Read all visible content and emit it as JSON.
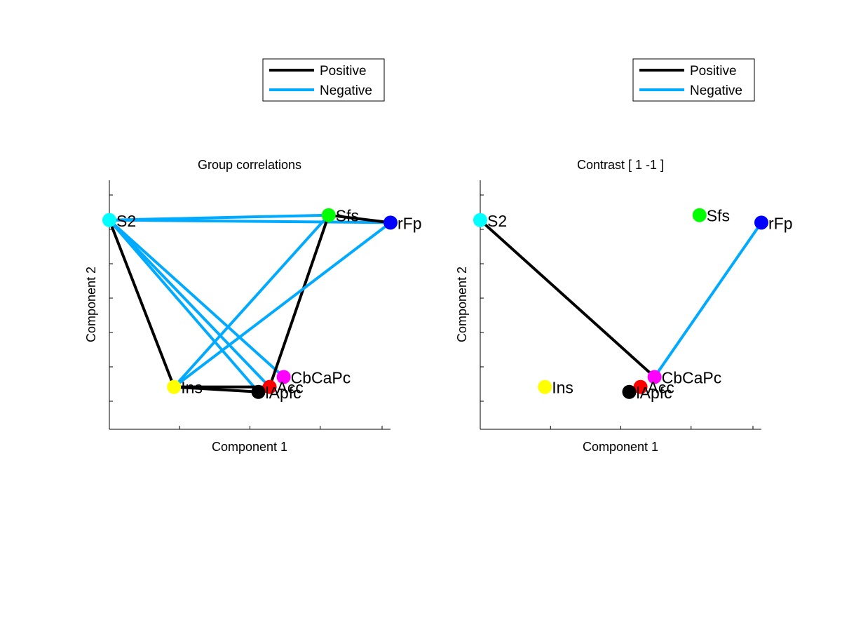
{
  "chart_data": [
    {
      "type": "scatter",
      "title": "Group correlations",
      "xlabel": "Component 1",
      "ylabel": "Component 2",
      "legend": {
        "placement": "above-right",
        "entries": [
          {
            "label": "Positive",
            "color": "#000000"
          },
          {
            "label": "Negative",
            "color": "#00aaff"
          }
        ]
      },
      "nodes": [
        {
          "name": "S2",
          "x": 0.0,
          "y": 0.84,
          "color": "#00ffff"
        },
        {
          "name": "Sfs",
          "x": 0.78,
          "y": 0.86,
          "color": "#00ff00"
        },
        {
          "name": "rFp",
          "x": 1.0,
          "y": 0.83,
          "color": "#0000ff"
        },
        {
          "name": "Ins",
          "x": 0.23,
          "y": 0.17,
          "color": "#ffff00"
        },
        {
          "name": "CbCaPc",
          "x": 0.62,
          "y": 0.21,
          "color": "#ff00ff"
        },
        {
          "name": "Acc",
          "x": 0.57,
          "y": 0.17,
          "color": "#ff0000"
        },
        {
          "name": "lApfc",
          "x": 0.53,
          "y": 0.15,
          "color": "#000000"
        }
      ],
      "edges": [
        {
          "from": "S2",
          "to": "Sfs",
          "sign": "Negative"
        },
        {
          "from": "S2",
          "to": "rFp",
          "sign": "Negative"
        },
        {
          "from": "S2",
          "to": "Ins",
          "sign": "Positive"
        },
        {
          "from": "S2",
          "to": "Acc",
          "sign": "Negative"
        },
        {
          "from": "S2",
          "to": "lApfc",
          "sign": "Negative"
        },
        {
          "from": "S2",
          "to": "CbCaPc",
          "sign": "Negative"
        },
        {
          "from": "Sfs",
          "to": "rFp",
          "sign": "Positive"
        },
        {
          "from": "Sfs",
          "to": "Ins",
          "sign": "Negative"
        },
        {
          "from": "Sfs",
          "to": "Acc",
          "sign": "Positive"
        },
        {
          "from": "rFp",
          "to": "Ins",
          "sign": "Negative"
        },
        {
          "from": "Ins",
          "to": "lApfc",
          "sign": "Positive"
        },
        {
          "from": "Ins",
          "to": "Acc",
          "sign": "Positive"
        }
      ],
      "ylim": [
        0,
        1
      ],
      "xlim": [
        0,
        1
      ],
      "grid": false
    },
    {
      "type": "scatter",
      "title": "Contrast [ 1 -1 ]",
      "xlabel": "Component 1",
      "ylabel": "Component 2",
      "legend": {
        "placement": "above-right",
        "entries": [
          {
            "label": "Positive",
            "color": "#000000"
          },
          {
            "label": "Negative",
            "color": "#00aaff"
          }
        ]
      },
      "nodes": [
        {
          "name": "S2",
          "x": 0.0,
          "y": 0.84,
          "color": "#00ffff"
        },
        {
          "name": "Sfs",
          "x": 0.78,
          "y": 0.86,
          "color": "#00ff00"
        },
        {
          "name": "rFp",
          "x": 1.0,
          "y": 0.83,
          "color": "#0000ff"
        },
        {
          "name": "Ins",
          "x": 0.23,
          "y": 0.17,
          "color": "#ffff00"
        },
        {
          "name": "CbCaPc",
          "x": 0.62,
          "y": 0.21,
          "color": "#ff00ff"
        },
        {
          "name": "Acc",
          "x": 0.57,
          "y": 0.17,
          "color": "#ff0000"
        },
        {
          "name": "lApfc",
          "x": 0.53,
          "y": 0.15,
          "color": "#000000"
        }
      ],
      "edges": [
        {
          "from": "S2",
          "to": "CbCaPc",
          "sign": "Positive"
        },
        {
          "from": "rFp",
          "to": "CbCaPc",
          "sign": "Negative"
        }
      ],
      "ylim": [
        0,
        1
      ],
      "xlim": [
        0,
        1
      ],
      "grid": false
    }
  ]
}
